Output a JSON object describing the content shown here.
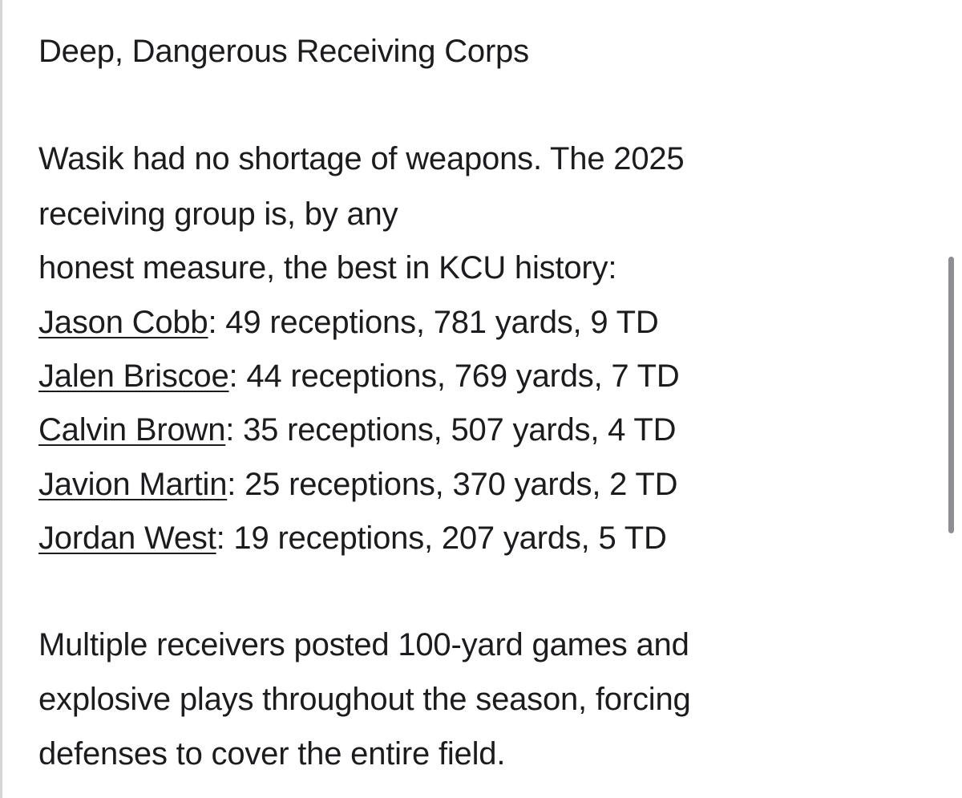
{
  "article": {
    "heading": "Deep, Dangerous Receiving Corps",
    "intro_lines": [
      "Wasik had no shortage of weapons. The 2025",
      "receiving group is, by any",
      "honest measure, the best in KCU history:"
    ],
    "receivers": [
      {
        "name": "Jason Cobb",
        "stats": ": 49 receptions, 781 yards, 9 TD"
      },
      {
        "name": "Jalen Briscoe",
        "stats": ": 44 receptions, 769 yards, 7 TD"
      },
      {
        "name": "Calvin Brown",
        "stats": ": 35 receptions, 507 yards, 4 TD"
      },
      {
        "name": "Javion Martin",
        "stats": ": 25 receptions, 370 yards, 2 TD"
      },
      {
        "name": "Jordan West",
        "stats": ": 19 receptions, 207 yards, 5 TD"
      }
    ],
    "closing_lines": [
      "Multiple receivers posted 100-yard games and",
      "explosive plays throughout the season, forcing",
      "defenses to cover the entire field."
    ]
  }
}
